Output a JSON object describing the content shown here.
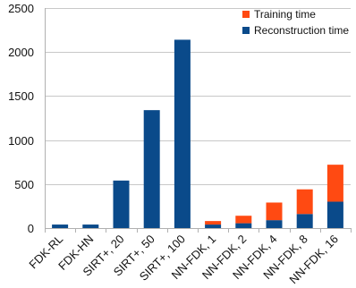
{
  "chart_data": {
    "type": "bar",
    "stacked": true,
    "title": "",
    "xlabel": "",
    "ylabel": "",
    "ylim": [
      0,
      2500
    ],
    "yticks": [
      0,
      500,
      1000,
      1500,
      2000,
      2500
    ],
    "grid": true,
    "legend_position": "top-right",
    "categories": [
      "FDK-RL",
      "FDK-HN",
      "SIRT+, 20",
      "SIRT+, 50",
      "SIRT+, 100",
      "NN-FDK, 1",
      "NN-FDK, 2",
      "NN-FDK, 4",
      "NN-FDK, 8",
      "NN-FDK, 16"
    ],
    "series": [
      {
        "name": "Reconstruction time",
        "color": "#0a4a8a",
        "values": [
          40,
          40,
          540,
          1340,
          2140,
          40,
          55,
          90,
          160,
          300
        ]
      },
      {
        "name": "Training time",
        "color": "#ff4a12",
        "values": [
          0,
          0,
          0,
          0,
          0,
          40,
          85,
          200,
          280,
          420
        ]
      }
    ],
    "legend": [
      "Training time",
      "Reconstruction time"
    ]
  }
}
